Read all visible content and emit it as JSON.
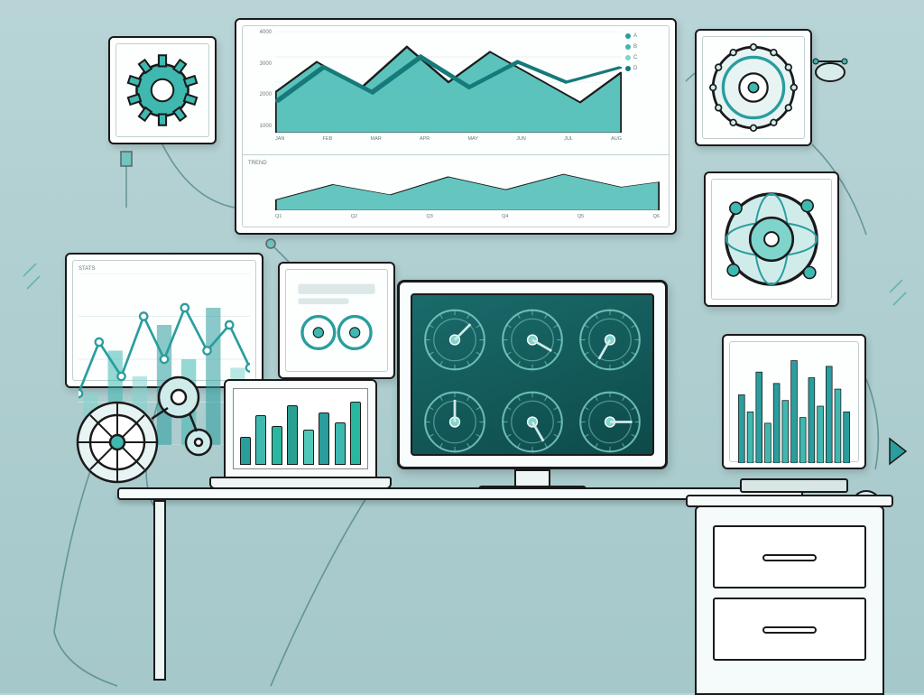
{
  "palette": {
    "bg_top": "#b8d4d6",
    "bg_bottom": "#a5c8ca",
    "stroke": "#1a1a1a",
    "panel_bg": "#ffffff",
    "teal_dark": "#2a9d9d",
    "teal_mid": "#3fb8b0",
    "teal_light": "#7fd4cc",
    "teal_pale": "#b8e6e0",
    "accent_line": "#167a7a",
    "grid": "#dce8e8",
    "text_muted": "#6a7a7a",
    "screen_dark": "#0e4a4a",
    "screen_light": "#1a6b6b"
  },
  "top_chart": {
    "type": "area+line",
    "upper": {
      "y_ticks": [
        "4000",
        "3000",
        "2000",
        "1000"
      ],
      "x_ticks": [
        "JAN",
        "FEB",
        "MAR",
        "APR",
        "MAY",
        "JUN",
        "JUL",
        "AUG"
      ],
      "legend": [
        {
          "label": "A",
          "color": "#2a9d9d"
        },
        {
          "label": "B",
          "color": "#3fb8b0"
        },
        {
          "label": "C",
          "color": "#7fd4cc"
        },
        {
          "label": "D",
          "color": "#167a7a"
        }
      ],
      "area_points": [
        0,
        60,
        12,
        30,
        25,
        55,
        38,
        15,
        50,
        50,
        62,
        20,
        75,
        45,
        88,
        70,
        100,
        40
      ],
      "area_fill": "#3fb8b0",
      "area_fill_opacity": 0.85,
      "line_points": [
        0,
        70,
        14,
        35,
        28,
        60,
        42,
        25,
        56,
        55,
        70,
        30,
        84,
        50,
        100,
        35
      ],
      "line_color": "#167a7a",
      "line_width": 2.2,
      "ylim": [
        0,
        100
      ],
      "grid": true
    },
    "lower": {
      "label": "TREND",
      "x_ticks": [
        "Q1",
        "Q2",
        "Q3",
        "Q4",
        "Q5",
        "Q6"
      ],
      "area_points": [
        0,
        80,
        15,
        50,
        30,
        70,
        45,
        35,
        60,
        60,
        75,
        30,
        90,
        55,
        100,
        45
      ],
      "fill": "#3fb8b0",
      "opacity": 0.8
    }
  },
  "left_chart": {
    "type": "combo",
    "label": "STATS",
    "line_points": [
      0,
      70,
      12,
      40,
      25,
      60,
      38,
      25,
      50,
      50,
      62,
      20,
      75,
      45,
      88,
      30,
      100,
      55
    ],
    "line_color": "#2a9d9d",
    "markers": true,
    "bars": [
      30,
      55,
      40,
      70,
      50,
      80,
      45
    ],
    "bar_colors": [
      "#7fd4cc",
      "#3fb8b0",
      "#7fd4cc",
      "#2a9d9d",
      "#3fb8b0",
      "#2a9d9d",
      "#7fd4cc"
    ]
  },
  "right_bars": {
    "type": "bar",
    "bars": [
      60,
      45,
      80,
      35,
      70,
      55,
      90,
      40,
      75,
      50,
      85,
      65,
      45
    ],
    "color": "#2a9d9d",
    "alt_color": "#3fb8b0"
  },
  "laptop_bars": {
    "type": "bar",
    "bars": [
      40,
      70,
      55,
      85,
      50,
      75,
      60,
      90
    ],
    "colors": [
      "#2a9d9d",
      "#3fb8b0",
      "#28b8a0",
      "#2aa090",
      "#4fc8b8",
      "#2a9d9d",
      "#3fb8b0",
      "#28b8a0"
    ]
  },
  "mid_panel": {
    "type": "gauge-cluster",
    "items": 4
  },
  "monitor": {
    "type": "gauge-grid",
    "gauges": [
      {
        "angle": -45,
        "ring": "#7fd4cc"
      },
      {
        "angle": 30,
        "ring": "#7fd4cc"
      },
      {
        "angle": 120,
        "ring": "#7fd4cc"
      },
      {
        "angle": -90,
        "ring": "#7fd4cc"
      },
      {
        "angle": 60,
        "ring": "#7fd4cc"
      },
      {
        "angle": 0,
        "ring": "#7fd4cc"
      }
    ]
  },
  "globe_panel": {
    "ring_color": "#3fb8b0",
    "center": "#7fd4cc"
  },
  "gear_panels": {
    "tl": {
      "teeth": 10,
      "fill": "#3fb8b0"
    },
    "tr": {
      "teeth": 12,
      "fill": "#e8f4f4",
      "rim": "#2a9d9d"
    }
  },
  "wires": {
    "stroke": "#2a6a6a",
    "width": 1.6
  }
}
